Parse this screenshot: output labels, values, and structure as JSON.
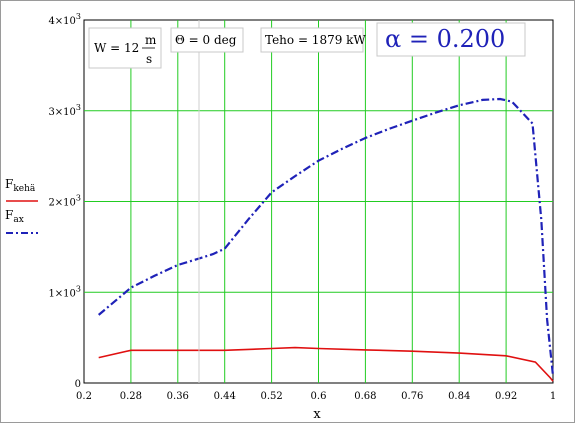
{
  "chart_data": {
    "type": "line",
    "title": "",
    "xlabel": "x",
    "ylabel": "",
    "xlim": [
      0.2,
      1.0
    ],
    "ylim": [
      0,
      4000
    ],
    "grid": true,
    "x_ticks": [
      "0.2",
      "0.28",
      "0.36",
      "0.44",
      "0.52",
      "0.6",
      "0.68",
      "0.76",
      "0.84",
      "0.92",
      "1"
    ],
    "y_ticks": [
      {
        "value": 0,
        "label": "0",
        "exp": ""
      },
      {
        "value": 1000,
        "label": "1×10",
        "exp": "3"
      },
      {
        "value": 2000,
        "label": "2×10",
        "exp": "3"
      },
      {
        "value": 3000,
        "label": "3×10",
        "exp": "3"
      },
      {
        "value": 4000,
        "label": "4×10",
        "exp": "3"
      }
    ],
    "legend_position": "left",
    "series": [
      {
        "name": "F",
        "name_sub": "kehä",
        "color": "#e01010",
        "style": "solid",
        "x": [
          0.225,
          0.28,
          0.36,
          0.44,
          0.52,
          0.56,
          0.6,
          0.68,
          0.76,
          0.84,
          0.92,
          0.97,
          0.995,
          1.0
        ],
        "y": [
          280,
          360,
          360,
          360,
          380,
          390,
          380,
          365,
          350,
          330,
          300,
          230,
          60,
          20
        ]
      },
      {
        "name": "F",
        "name_sub": "ax",
        "color": "#1f22b8",
        "style": "dashdot",
        "x": [
          0.225,
          0.28,
          0.32,
          0.36,
          0.4,
          0.42,
          0.44,
          0.48,
          0.52,
          0.56,
          0.6,
          0.64,
          0.68,
          0.72,
          0.76,
          0.8,
          0.84,
          0.88,
          0.91,
          0.93,
          0.965,
          0.98,
          0.99,
          1.0
        ],
        "y": [
          750,
          1050,
          1180,
          1300,
          1380,
          1420,
          1480,
          1800,
          2100,
          2280,
          2450,
          2580,
          2700,
          2800,
          2890,
          2980,
          3060,
          3120,
          3130,
          3100,
          2860,
          1800,
          700,
          80
        ]
      }
    ],
    "annotations": {
      "w_text": "W = 12",
      "w_num": "m",
      "w_den": "s",
      "theta": "Θ = 0 deg",
      "teho": "Teho = 1879 kW",
      "alpha": "α = 0.200"
    }
  }
}
